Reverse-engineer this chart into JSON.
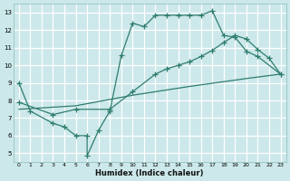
{
  "xlabel": "Humidex (Indice chaleur)",
  "bg_color": "#cce8ea",
  "grid_color": "#ffffff",
  "line_color": "#2e7d6e",
  "xlim": [
    -0.5,
    23.5
  ],
  "ylim": [
    4.5,
    13.5
  ],
  "xticks": [
    0,
    1,
    2,
    3,
    4,
    5,
    6,
    7,
    8,
    9,
    10,
    11,
    12,
    13,
    14,
    15,
    16,
    17,
    18,
    19,
    20,
    21,
    22,
    23
  ],
  "yticks": [
    5,
    6,
    7,
    8,
    9,
    10,
    11,
    12,
    13
  ],
  "line1_x": [
    0,
    1,
    3,
    4,
    5,
    6,
    6,
    7,
    8,
    9,
    10,
    11,
    12,
    13,
    14,
    15,
    16,
    17,
    18,
    19,
    20,
    21,
    23
  ],
  "line1_y": [
    9.0,
    7.4,
    6.7,
    6.5,
    6.0,
    6.0,
    4.85,
    6.3,
    7.4,
    10.55,
    12.4,
    12.2,
    12.85,
    12.85,
    12.85,
    12.85,
    12.85,
    13.1,
    11.7,
    11.6,
    10.8,
    10.5,
    9.5
  ],
  "line2_x": [
    0,
    3,
    5,
    8,
    10,
    12,
    13,
    14,
    15,
    16,
    17,
    18,
    19,
    20,
    21,
    22,
    23
  ],
  "line2_y": [
    7.9,
    7.2,
    7.5,
    7.5,
    8.5,
    9.5,
    9.8,
    10.0,
    10.2,
    10.5,
    10.85,
    11.3,
    11.7,
    11.5,
    10.9,
    10.4,
    9.5
  ],
  "line3_x": [
    0,
    5,
    10,
    15,
    20,
    23
  ],
  "line3_y": [
    7.5,
    7.7,
    8.3,
    8.8,
    9.25,
    9.5
  ]
}
